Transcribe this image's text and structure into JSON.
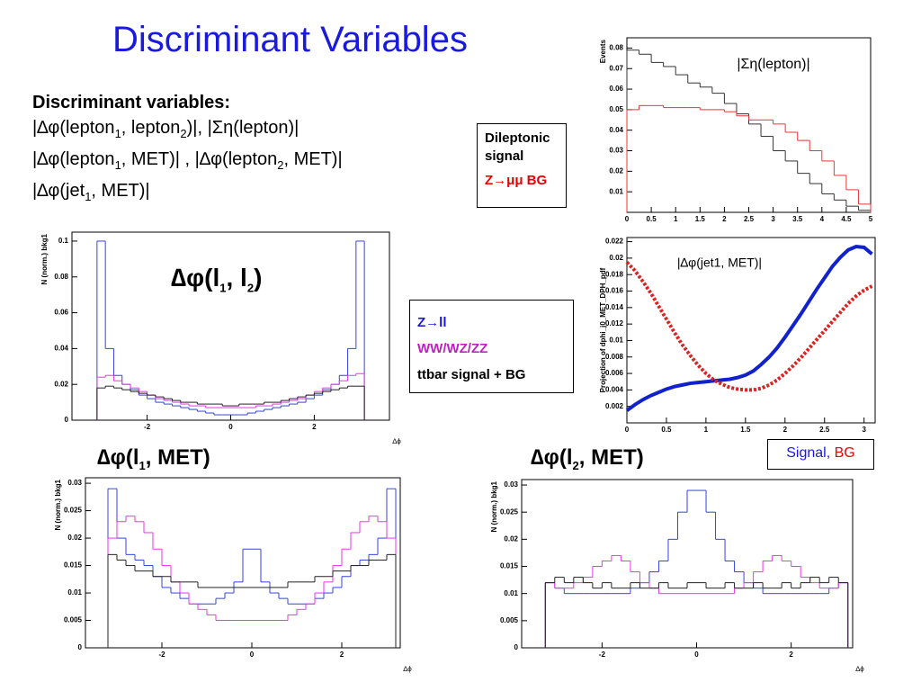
{
  "title": "Discriminant Variables",
  "text_block": {
    "heading": "Discriminant variables:",
    "lines": [
      [
        {
          "text": "|∆φ(lepton"
        },
        {
          "sub": "1"
        },
        {
          "text": ", lepton"
        },
        {
          "sub": "2"
        },
        {
          "text": ")|,   |Ση(lepton)|"
        }
      ],
      [
        {
          "text": "|∆φ(lepton"
        },
        {
          "sub": "1"
        },
        {
          "text": ", MET)| ,   |∆φ(lepton"
        },
        {
          "sub": "2"
        },
        {
          "text": ", MET)|"
        }
      ],
      [
        {
          "text": "|∆φ(jet"
        },
        {
          "sub": "1"
        },
        {
          "text": ", MET)|"
        }
      ]
    ]
  },
  "legend_boxes": [
    {
      "items": [
        "Dileptonic signal",
        "Z→μμ BG"
      ]
    },
    {
      "items": [
        "Z→ll",
        "WW/WZ/ZZ",
        "ttbar signal + BG"
      ]
    },
    {
      "items": [
        "Signal,",
        "BG"
      ]
    }
  ],
  "panel_titles": [
    [
      {
        "text": "∆φ(l"
      },
      {
        "sub": "1"
      },
      {
        "text": ", l"
      },
      {
        "sub": "2"
      },
      {
        "text": ")"
      }
    ],
    [
      {
        "text": "∆φ(l"
      },
      {
        "sub": "1"
      },
      {
        "text": ", MET)"
      }
    ],
    [
      {
        "text": "∆φ(l"
      },
      {
        "sub": "2"
      },
      {
        "text": ", MET)"
      }
    ]
  ],
  "chart_data": [
    {
      "type": "histogram",
      "ylabel": "Events",
      "annotation": "|Ση(lepton)|",
      "bins": [
        0,
        0.25,
        0.5,
        0.75,
        1,
        1.25,
        1.5,
        1.75,
        2,
        2.25,
        2.5,
        2.75,
        3,
        3.25,
        3.5,
        3.75,
        4,
        4.25,
        4.5,
        4.75,
        5
      ],
      "series": [
        {
          "color": "#333333",
          "values": [
            0.079,
            0.077,
            0.073,
            0.071,
            0.067,
            0.063,
            0.061,
            0.058,
            0.053,
            0.048,
            0.043,
            0.037,
            0.03,
            0.025,
            0.019,
            0.014,
            0.009,
            0.006,
            0.003,
            0.001
          ]
        },
        {
          "color": "#ee3333",
          "values": [
            0.05,
            0.052,
            0.052,
            0.051,
            0.051,
            0.051,
            0.05,
            0.05,
            0.049,
            0.047,
            0.045,
            0.045,
            0.043,
            0.039,
            0.035,
            0.03,
            0.025,
            0.018,
            0.011,
            0.004
          ]
        }
      ],
      "xlim": [
        0,
        5
      ],
      "ylim": [
        0,
        0.085
      ],
      "xticks": [
        0,
        0.5,
        1,
        1.5,
        2,
        2.5,
        3,
        3.5,
        4,
        4.5,
        5
      ],
      "yticks": [
        0.01,
        0.02,
        0.03,
        0.04,
        0.05,
        0.06,
        0.07,
        0.08
      ]
    },
    {
      "type": "line",
      "ylabel": "Projection of dphi_j0_MET_DPH_pdf",
      "annotation": "|∆φ(jet1, MET)|",
      "x": [
        0,
        0.1,
        0.2,
        0.3,
        0.4,
        0.5,
        0.6,
        0.7,
        0.8,
        0.9,
        1,
        1.1,
        1.2,
        1.3,
        1.4,
        1.5,
        1.6,
        1.7,
        1.8,
        1.9,
        2,
        2.1,
        2.2,
        2.3,
        2.4,
        2.5,
        2.6,
        2.7,
        2.8,
        2.9,
        3,
        3.1
      ],
      "series": [
        {
          "color": "#1122cc",
          "line_style": "solid",
          "values": [
            0.0015,
            0.0022,
            0.0028,
            0.0033,
            0.0037,
            0.0041,
            0.0044,
            0.0046,
            0.0048,
            0.0049,
            0.005,
            0.0051,
            0.0052,
            0.0053,
            0.0055,
            0.0058,
            0.0063,
            0.0071,
            0.008,
            0.0091,
            0.0104,
            0.0118,
            0.0132,
            0.0147,
            0.0162,
            0.0176,
            0.019,
            0.0201,
            0.021,
            0.0214,
            0.0213,
            0.0205
          ]
        },
        {
          "color": "#dd2222",
          "line_style": "dotted",
          "values": [
            0.0195,
            0.0185,
            0.0172,
            0.0158,
            0.0142,
            0.0126,
            0.011,
            0.0095,
            0.0082,
            0.007,
            0.006,
            0.0052,
            0.0047,
            0.0043,
            0.0041,
            0.004,
            0.004,
            0.0042,
            0.0046,
            0.0052,
            0.006,
            0.0069,
            0.0079,
            0.009,
            0.0101,
            0.0112,
            0.0123,
            0.0134,
            0.0145,
            0.0154,
            0.0161,
            0.0166
          ]
        }
      ],
      "xlim": [
        0,
        3.14
      ],
      "ylim": [
        0,
        0.0225
      ],
      "xticks": [
        0,
        0.5,
        1,
        1.5,
        2,
        2.5,
        3
      ],
      "yticks": [
        0.002,
        0.004,
        0.006,
        0.008,
        0.01,
        0.012,
        0.014,
        0.016,
        0.018,
        0.02,
        0.022
      ]
    },
    {
      "type": "histogram",
      "ylabel": "N (norm.) bkg1",
      "xlabel": "∆ϕ",
      "bins": [
        -3.2,
        -3,
        -2.8,
        -2.6,
        -2.4,
        -2.2,
        -2,
        -1.8,
        -1.6,
        -1.4,
        -1.2,
        -1,
        -0.8,
        -0.6,
        -0.4,
        -0.2,
        0,
        0.2,
        0.4,
        0.6,
        0.8,
        1,
        1.2,
        1.4,
        1.6,
        1.8,
        2,
        2.2,
        2.4,
        2.6,
        2.8,
        3,
        3.2
      ],
      "series": [
        {
          "color": "#3344dd",
          "values": [
            0.1,
            0.04,
            0.025,
            0.02,
            0.017,
            0.014,
            0.012,
            0.01,
            0.009,
            0.008,
            0.007,
            0.006,
            0.005,
            0.004,
            0.003,
            0.003,
            0.003,
            0.003,
            0.004,
            0.005,
            0.006,
            0.007,
            0.008,
            0.009,
            0.01,
            0.012,
            0.014,
            0.017,
            0.02,
            0.025,
            0.04,
            0.1
          ]
        },
        {
          "color": "#ee33ee",
          "values": [
            0.024,
            0.025,
            0.022,
            0.02,
            0.018,
            0.016,
            0.014,
            0.012,
            0.011,
            0.01,
            0.009,
            0.008,
            0.008,
            0.007,
            0.007,
            0.007,
            0.007,
            0.007,
            0.007,
            0.008,
            0.008,
            0.009,
            0.01,
            0.011,
            0.012,
            0.014,
            0.016,
            0.018,
            0.02,
            0.022,
            0.025,
            0.026
          ]
        },
        {
          "color": "#222222",
          "values": [
            0.018,
            0.019,
            0.018,
            0.017,
            0.016,
            0.015,
            0.014,
            0.013,
            0.012,
            0.011,
            0.01,
            0.01,
            0.009,
            0.009,
            0.009,
            0.008,
            0.008,
            0.009,
            0.009,
            0.009,
            0.01,
            0.01,
            0.011,
            0.012,
            0.013,
            0.014,
            0.015,
            0.016,
            0.017,
            0.018,
            0.019,
            0.019
          ]
        }
      ],
      "xlim": [
        -3.8,
        3.8
      ],
      "ylim": [
        0,
        0.105
      ],
      "xticks": [
        -2,
        0,
        2
      ],
      "yticks": [
        0,
        0.02,
        0.04,
        0.06,
        0.08,
        0.1
      ]
    },
    {
      "type": "histogram",
      "ylabel": "N (norm.) bkg1",
      "xlabel": "∆ϕ",
      "bins": [
        -3.2,
        -3,
        -2.8,
        -2.6,
        -2.4,
        -2.2,
        -2,
        -1.8,
        -1.6,
        -1.4,
        -1.2,
        -1,
        -0.8,
        -0.6,
        -0.4,
        -0.2,
        0,
        0.2,
        0.4,
        0.6,
        0.8,
        1,
        1.2,
        1.4,
        1.6,
        1.8,
        2,
        2.2,
        2.4,
        2.6,
        2.8,
        3,
        3.2
      ],
      "series": [
        {
          "color": "#3344dd",
          "values": [
            0.029,
            0.02,
            0.017,
            0.016,
            0.015,
            0.013,
            0.011,
            0.01,
            0.009,
            0.008,
            0.008,
            0.008,
            0.009,
            0.01,
            0.012,
            0.018,
            0.018,
            0.012,
            0.01,
            0.009,
            0.008,
            0.008,
            0.008,
            0.009,
            0.01,
            0.011,
            0.013,
            0.015,
            0.016,
            0.017,
            0.02,
            0.029
          ]
        },
        {
          "color": "#ee33ee",
          "values": [
            0.02,
            0.023,
            0.024,
            0.023,
            0.021,
            0.018,
            0.015,
            0.012,
            0.01,
            0.008,
            0.007,
            0.006,
            0.005,
            0.005,
            0.005,
            0.005,
            0.005,
            0.005,
            0.005,
            0.005,
            0.006,
            0.007,
            0.008,
            0.01,
            0.012,
            0.015,
            0.018,
            0.021,
            0.023,
            0.024,
            0.023,
            0.02
          ]
        },
        {
          "color": "#222222",
          "values": [
            0.017,
            0.016,
            0.015,
            0.014,
            0.014,
            0.013,
            0.013,
            0.012,
            0.012,
            0.012,
            0.011,
            0.011,
            0.011,
            0.011,
            0.011,
            0.011,
            0.011,
            0.011,
            0.011,
            0.011,
            0.012,
            0.012,
            0.012,
            0.013,
            0.013,
            0.014,
            0.014,
            0.015,
            0.015,
            0.016,
            0.016,
            0.017
          ]
        }
      ],
      "xlim": [
        -3.7,
        3.3
      ],
      "ylim": [
        0,
        0.031
      ],
      "xticks": [
        -2,
        0,
        2
      ],
      "yticks": [
        0,
        0.005,
        0.01,
        0.015,
        0.02,
        0.025,
        0.03
      ]
    },
    {
      "type": "histogram",
      "ylabel": "N (norm.) bkg1",
      "xlabel": "∆ϕ",
      "bins": [
        -3.2,
        -3,
        -2.8,
        -2.6,
        -2.4,
        -2.2,
        -2,
        -1.8,
        -1.6,
        -1.4,
        -1.2,
        -1,
        -0.8,
        -0.6,
        -0.4,
        -0.2,
        0,
        0.2,
        0.4,
        0.6,
        0.8,
        1,
        1.2,
        1.4,
        1.6,
        1.8,
        2,
        2.2,
        2.4,
        2.6,
        2.8,
        3,
        3.2
      ],
      "series": [
        {
          "color": "#3344dd",
          "values": [
            0.012,
            0.011,
            0.01,
            0.01,
            0.01,
            0.01,
            0.01,
            0.01,
            0.01,
            0.011,
            0.012,
            0.014,
            0.016,
            0.02,
            0.025,
            0.029,
            0.029,
            0.025,
            0.02,
            0.016,
            0.014,
            0.012,
            0.011,
            0.01,
            0.01,
            0.01,
            0.01,
            0.01,
            0.01,
            0.01,
            0.011,
            0.012
          ]
        },
        {
          "color": "#ee33ee",
          "values": [
            0.012,
            0.011,
            0.011,
            0.012,
            0.013,
            0.015,
            0.016,
            0.017,
            0.016,
            0.014,
            0.012,
            0.011,
            0.01,
            0.01,
            0.01,
            0.01,
            0.01,
            0.01,
            0.01,
            0.01,
            0.011,
            0.012,
            0.014,
            0.016,
            0.017,
            0.016,
            0.015,
            0.013,
            0.012,
            0.011,
            0.011,
            0.012
          ]
        },
        {
          "color": "#222222",
          "values": [
            0.012,
            0.013,
            0.012,
            0.013,
            0.012,
            0.011,
            0.012,
            0.011,
            0.011,
            0.012,
            0.011,
            0.011,
            0.012,
            0.011,
            0.011,
            0.012,
            0.012,
            0.011,
            0.011,
            0.012,
            0.011,
            0.011,
            0.012,
            0.011,
            0.011,
            0.012,
            0.011,
            0.012,
            0.013,
            0.012,
            0.013,
            0.012
          ]
        }
      ],
      "xlim": [
        -3.7,
        3.3
      ],
      "ylim": [
        0,
        0.031
      ],
      "xticks": [
        -2,
        0,
        2
      ],
      "yticks": [
        0,
        0.005,
        0.01,
        0.015,
        0.02,
        0.025,
        0.03
      ]
    }
  ]
}
